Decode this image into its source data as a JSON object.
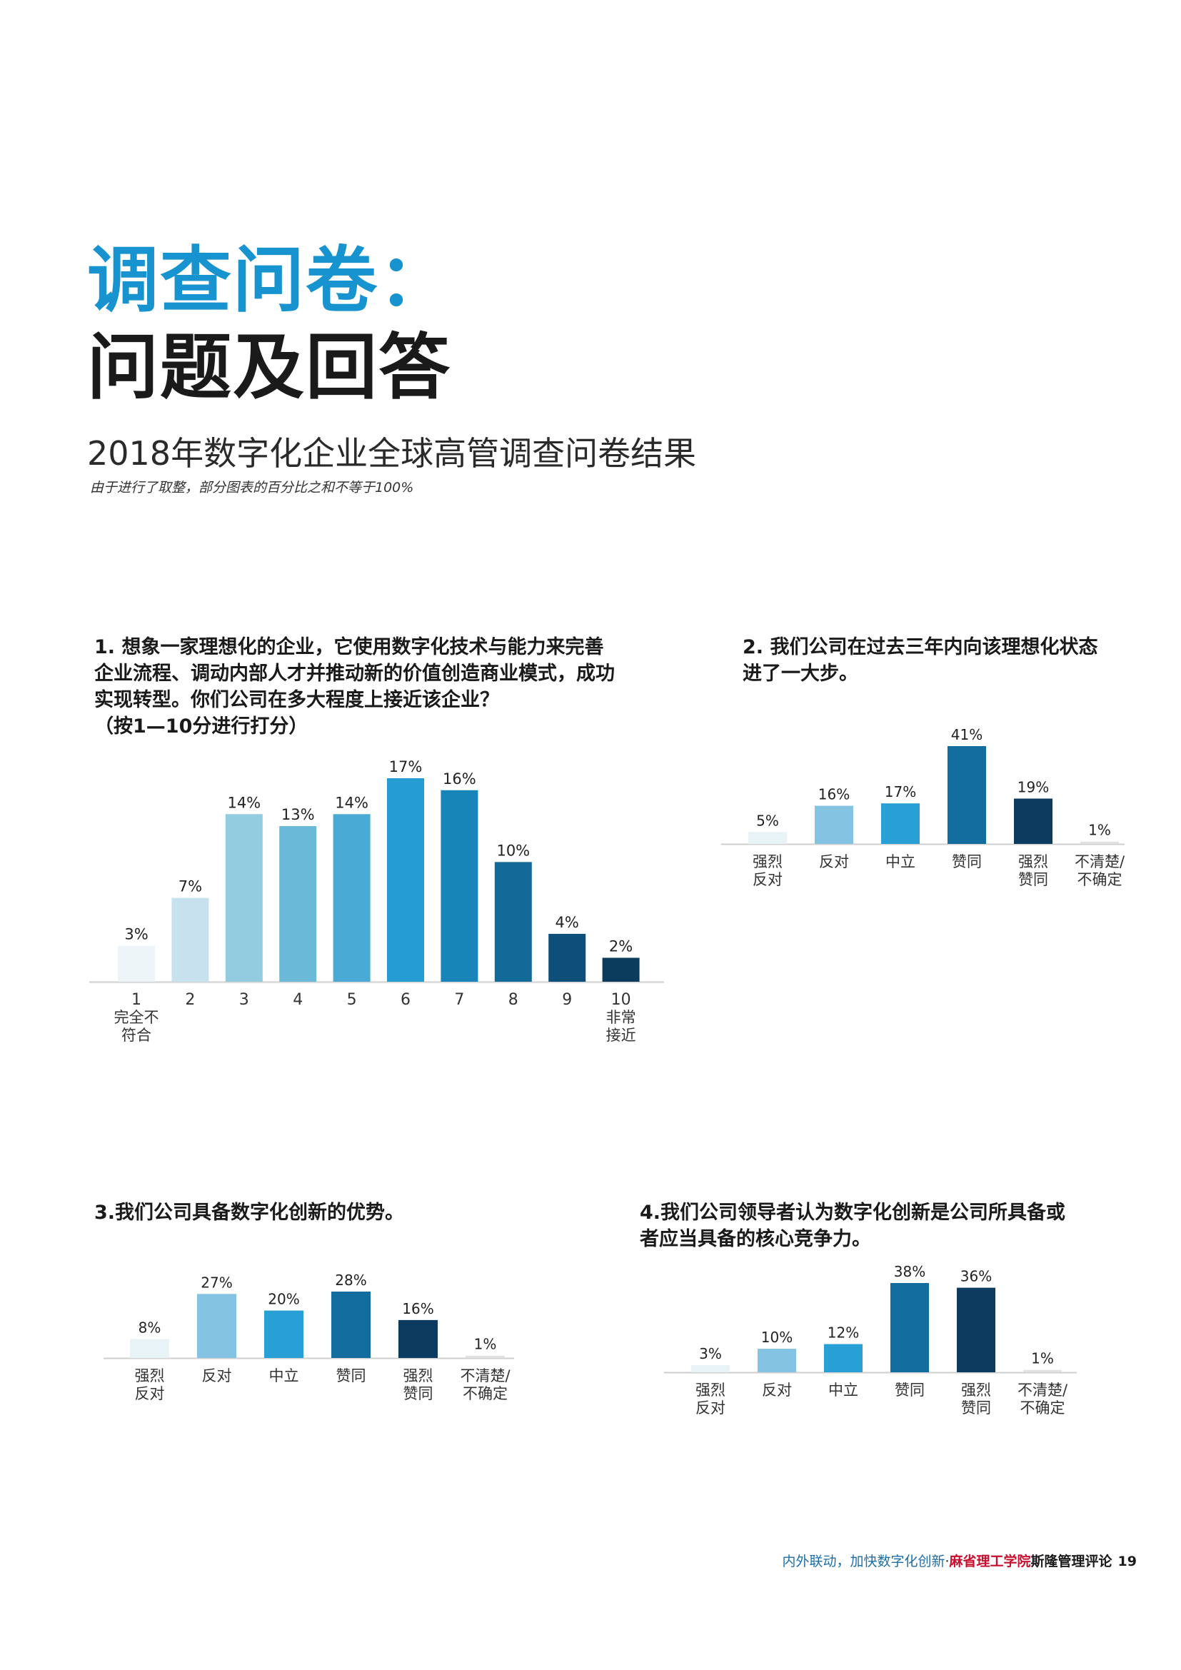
{
  "heading": {
    "line1": "调查问卷：",
    "line2": "问题及回答",
    "subtitle": "2018年数字化企业全球高管调查问卷结果",
    "note": "由于进行了取整，部分图表的百分比之和不等于100%"
  },
  "questions": {
    "q1": {
      "line1": "1. 想象一家理想化的企业，它使用数字化技术与能力来完善",
      "line2": "企业流程、调动内部人才并推动新的价值创造商业模式，成功",
      "line3": "实现转型。你们公司在多大程度上接近该企业？",
      "line4": "（按1—10分进行打分）"
    },
    "q2": {
      "line1": "2. 我们公司在过去三年内向该理想化状态",
      "line2": "进了一大步。"
    },
    "q3": {
      "line1": "3.我们公司具备数字化创新的优势。"
    },
    "q4": {
      "line1": "4.我们公司领导者认为数字化创新是公司所具备或",
      "line2": "者应当具备的核心竞争力。"
    }
  },
  "chart_data": [
    {
      "id": "q1",
      "type": "bar",
      "categories": [
        "1",
        "2",
        "3",
        "4",
        "5",
        "6",
        "7",
        "8",
        "9",
        "10"
      ],
      "sublabels": [
        [
          "完全不",
          "符合"
        ],
        [],
        [],
        [],
        [],
        [],
        [],
        [],
        [],
        [
          "非常",
          "接近"
        ]
      ],
      "values": [
        3,
        7,
        14,
        13,
        14,
        17,
        16,
        10,
        4,
        2
      ],
      "value_labels": [
        "3%",
        "7%",
        "14%",
        "13%",
        "14%",
        "17%",
        "16%",
        "10%",
        "4%",
        "2%"
      ],
      "colors": [
        "#eef5f9",
        "#c7e2ee",
        "#93cbe0",
        "#6bb9d9",
        "#4aaad6",
        "#259dd3",
        "#1785b8",
        "#126a99",
        "#0d4f78",
        "#0b3c5e"
      ],
      "ylim": [
        0,
        17
      ]
    },
    {
      "id": "q2",
      "type": "bar",
      "categories": [
        [
          "强烈",
          "反对"
        ],
        [
          "反对"
        ],
        [
          "中立"
        ],
        [
          "赞同"
        ],
        [
          "强烈",
          "赞同"
        ],
        [
          "不清楚/",
          "不确定"
        ]
      ],
      "values": [
        5,
        16,
        17,
        41,
        19,
        1
      ],
      "value_labels": [
        "5%",
        "16%",
        "17%",
        "41%",
        "19%",
        "1%"
      ],
      "colors": [
        "#e8f3f8",
        "#84c3e2",
        "#28a0d6",
        "#126d9e",
        "#0c3b5f",
        "#e2e2e2"
      ],
      "ylim": [
        0,
        41
      ]
    },
    {
      "id": "q3",
      "type": "bar",
      "categories": [
        [
          "强烈",
          "反对"
        ],
        [
          "反对"
        ],
        [
          "中立"
        ],
        [
          "赞同"
        ],
        [
          "强烈",
          "赞同"
        ],
        [
          "不清楚/",
          "不确定"
        ]
      ],
      "values": [
        8,
        27,
        20,
        28,
        16,
        1
      ],
      "value_labels": [
        "8%",
        "27%",
        "20%",
        "28%",
        "16%",
        "1%"
      ],
      "colors": [
        "#e8f3f8",
        "#84c3e2",
        "#28a0d6",
        "#126d9e",
        "#0c3b5f",
        "#e2e2e2"
      ],
      "ylim": [
        0,
        28
      ]
    },
    {
      "id": "q4",
      "type": "bar",
      "categories": [
        [
          "强烈",
          "反对"
        ],
        [
          "反对"
        ],
        [
          "中立"
        ],
        [
          "赞同"
        ],
        [
          "强烈",
          "赞同"
        ],
        [
          "不清楚/",
          "不确定"
        ]
      ],
      "values": [
        3,
        10,
        12,
        38,
        36,
        1
      ],
      "value_labels": [
        "3%",
        "10%",
        "12%",
        "38%",
        "36%",
        "1%"
      ],
      "colors": [
        "#e8f3f8",
        "#84c3e2",
        "#28a0d6",
        "#126d9e",
        "#0c3b5f",
        "#e2e2e2"
      ],
      "ylim": [
        0,
        38
      ]
    }
  ],
  "footer": {
    "tagline": "内外联动，加快数字化创新",
    "separator": "·",
    "institute": "麻省理工学院",
    "journal": "斯隆管理评论",
    "page": "19"
  }
}
